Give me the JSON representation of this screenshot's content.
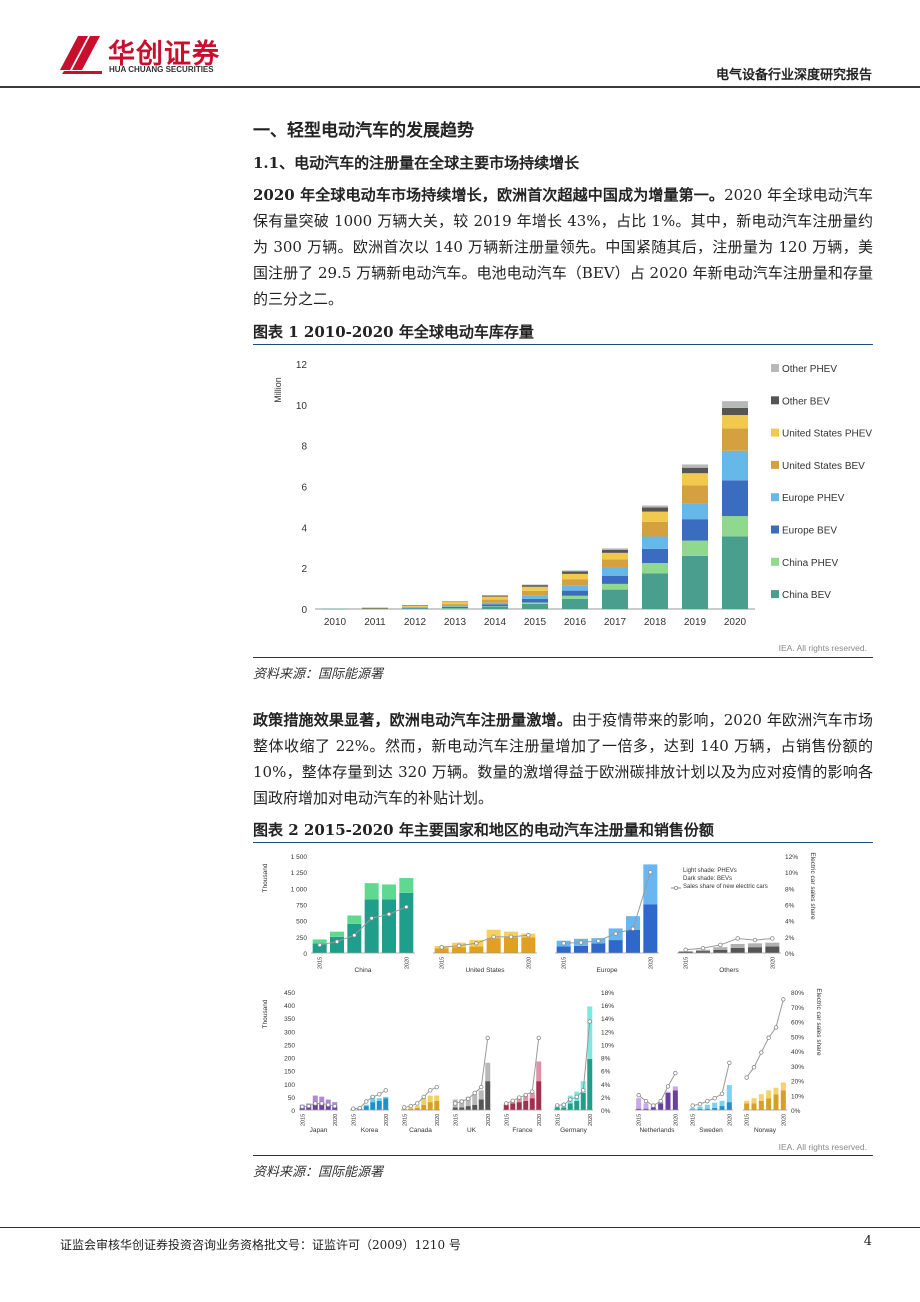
{
  "header": {
    "logo_cn": "华创证券",
    "logo_en": "HUA CHUANG SECURITIES",
    "report_title": "电气设备行业深度研究报告"
  },
  "section": {
    "h1": "一、轻型电动汽车的发展趋势",
    "h2": "1.1、电动汽车的注册量在全球主要市场持续增长"
  },
  "para1": {
    "bold": "2020 年全球电动车市场持续增长，欧洲首次超越中国成为增量第一。",
    "text": "2020 年全球电动汽车保有量突破 1000 万辆大关，较 2019 年增长 43%，占比 1%。其中，新电动汽车注册量约为 300 万辆。欧洲首次以 140 万辆新注册量领先。中国紧随其后，注册量为 120 万辆，美国注册了 29.5 万辆新电动汽车。电池电动汽车（BEV）占 2020 年新电动汽车注册量和存量的三分之二。"
  },
  "fig1": {
    "title": "图表 1 2010-2020 年全球电动车库存量",
    "source": "资料来源：国际能源署",
    "credit": "IEA. All rights reserved."
  },
  "para2": {
    "bold": "政策措施效果显著，欧洲电动汽车注册量激增。",
    "text": "由于疫情带来的影响，2020 年欧洲汽车市场整体收缩了 22%。然而，新电动汽车注册量增加了一倍多，达到 140 万辆，占销售份额的 10%，整体存量到达 320 万辆。数量的激增得益于欧洲碳排放计划以及为应对疫情的影响各国政府增加对电动汽车的补贴计划。"
  },
  "fig2": {
    "title": "图表 2 2015-2020 年主要国家和地区的电动汽车注册量和销售份额",
    "source": "资料来源：国际能源署",
    "credit": "IEA. All rights reserved."
  },
  "footer": {
    "license": "证监会审核华创证券投资咨询业务资格批文号：证监许可（2009）1210 号",
    "page": "4"
  },
  "chart_data": [
    {
      "type": "bar",
      "stacked": true,
      "ylabel": "Million",
      "ylim": [
        0,
        12
      ],
      "yticks": [
        "0",
        "2",
        "4",
        "6",
        "8",
        "10",
        "12"
      ],
      "categories": [
        "2010",
        "2011",
        "2012",
        "2013",
        "2014",
        "2015",
        "2016",
        "2017",
        "2018",
        "2019",
        "2020"
      ],
      "legend_position": "right",
      "series": [
        {
          "name": "China BEV",
          "color": "#4a9e8e",
          "values": [
            0.01,
            0.02,
            0.03,
            0.04,
            0.1,
            0.25,
            0.5,
            0.95,
            1.75,
            2.6,
            3.55
          ]
        },
        {
          "name": "China PHEV",
          "color": "#8fd98f",
          "values": [
            0,
            0,
            0,
            0.01,
            0.03,
            0.07,
            0.15,
            0.28,
            0.5,
            0.75,
            1.0
          ]
        },
        {
          "name": "Europe BEV",
          "color": "#3a6cc0",
          "values": [
            0,
            0.01,
            0.02,
            0.05,
            0.1,
            0.18,
            0.25,
            0.4,
            0.7,
            1.05,
            1.75
          ]
        },
        {
          "name": "Europe PHEV",
          "color": "#66b8e8",
          "values": [
            0,
            0,
            0.01,
            0.04,
            0.08,
            0.17,
            0.26,
            0.38,
            0.6,
            0.75,
            1.45
          ]
        },
        {
          "name": "United States BEV",
          "color": "#d4a040",
          "values": [
            0,
            0.01,
            0.05,
            0.1,
            0.15,
            0.22,
            0.3,
            0.42,
            0.72,
            0.9,
            1.1
          ]
        },
        {
          "name": "United States PHEV",
          "color": "#f2c94c",
          "values": [
            0,
            0.01,
            0.05,
            0.1,
            0.15,
            0.2,
            0.26,
            0.32,
            0.5,
            0.6,
            0.65
          ]
        },
        {
          "name": "Other BEV",
          "color": "#555555",
          "values": [
            0,
            0.01,
            0.02,
            0.03,
            0.05,
            0.08,
            0.12,
            0.15,
            0.2,
            0.27,
            0.35
          ]
        },
        {
          "name": "Other PHEV",
          "color": "#b8b8b8",
          "values": [
            0,
            0,
            0,
            0.01,
            0.02,
            0.03,
            0.05,
            0.07,
            0.1,
            0.16,
            0.33
          ]
        }
      ]
    },
    {
      "type": "bar",
      "stacked": true,
      "ylabel": "Thousand",
      "y2label": "Electric car sales share",
      "ylim": [
        0,
        1500
      ],
      "yticks": [
        "0",
        "250",
        "500",
        "750",
        "1 000",
        "1 250",
        "1 500"
      ],
      "y2ticks": [
        "0%",
        "2%",
        "4%",
        "6%",
        "8%",
        "10%",
        "12%"
      ],
      "legend": [
        "Light shade: PHEVs",
        "Dark shade: BEVs",
        "Sales share of new electric cars"
      ],
      "groups": [
        {
          "name": "China",
          "color_dark": "#1f9e8c",
          "color_light": "#5fd98f",
          "bev": [
            150,
            250,
            450,
            830,
            830,
            930
          ],
          "phev": [
            60,
            80,
            130,
            250,
            230,
            230
          ],
          "share": [
            1.0,
            1.4,
            2.2,
            4.3,
            4.8,
            5.7
          ]
        },
        {
          "name": "United States",
          "color_dark": "#e0a020",
          "color_light": "#f5d060",
          "bev": [
            70,
            90,
            100,
            230,
            240,
            240
          ],
          "phev": [
            40,
            70,
            100,
            130,
            90,
            60
          ],
          "share": [
            0.7,
            0.9,
            1.2,
            2.0,
            2.0,
            2.2
          ]
        },
        {
          "name": "Europe",
          "color_dark": "#2e68c8",
          "color_light": "#6ab6f0",
          "bev": [
            100,
            110,
            150,
            200,
            360,
            750
          ],
          "phev": [
            90,
            110,
            80,
            180,
            210,
            620
          ],
          "share": [
            1.2,
            1.3,
            1.5,
            2.4,
            3.0,
            10.0
          ]
        },
        {
          "name": "Others",
          "color_dark": "#555555",
          "color_light": "#b0b0b0",
          "bev": [
            20,
            30,
            50,
            80,
            90,
            100
          ],
          "phev": [
            10,
            20,
            40,
            60,
            60,
            60
          ],
          "share": [
            0.4,
            0.6,
            1.0,
            1.8,
            1.6,
            1.8
          ]
        }
      ],
      "x_first": "2015",
      "x_last": "2020"
    },
    {
      "type": "bar",
      "stacked": true,
      "ylabel": "Thousand",
      "ylim": [
        0,
        450
      ],
      "yticks": [
        "0",
        "50",
        "100",
        "150",
        "200",
        "250",
        "300",
        "350",
        "400",
        "450"
      ],
      "y2ticks": [
        "0%",
        "2%",
        "4%",
        "6%",
        "8%",
        "10%",
        "12%",
        "14%",
        "16%",
        "18%"
      ],
      "groups": [
        {
          "name": "Japan",
          "color_dark": "#6a3fa0",
          "color_light": "#b08ad8",
          "bev": [
            10,
            15,
            25,
            26,
            20,
            15
          ],
          "phev": [
            10,
            10,
            30,
            25,
            20,
            15
          ],
          "share": [
            0.5,
            0.6,
            1.0,
            1.0,
            0.8,
            0.6
          ]
        },
        {
          "name": "Korea",
          "color_dark": "#1f90c8",
          "color_light": "#6ad0f0",
          "bev": [
            3,
            5,
            15,
            30,
            35,
            45
          ],
          "phev": [
            1,
            2,
            5,
            25,
            10,
            5
          ],
          "share": [
            0.2,
            0.3,
            1.3,
            2.0,
            2.4,
            3.0
          ]
        },
        {
          "name": "Canada",
          "color_dark": "#d8a020",
          "color_light": "#f2d060",
          "bev": [
            3,
            5,
            8,
            20,
            30,
            35
          ],
          "phev": [
            3,
            4,
            8,
            25,
            25,
            20
          ],
          "share": [
            0.4,
            0.6,
            1.0,
            2.0,
            3.0,
            3.5
          ]
        },
        {
          "name": "UK",
          "color_dark": "#555555",
          "color_light": "#b8b8b8",
          "bev": [
            10,
            10,
            15,
            20,
            40,
            110
          ],
          "phev": [
            30,
            30,
            35,
            40,
            35,
            70
          ],
          "share": [
            1.0,
            1.3,
            1.7,
            2.6,
            3.5,
            11.0
          ]
        },
        {
          "name": "France",
          "color_dark": "#a03050",
          "color_light": "#e090a8",
          "bev": [
            20,
            25,
            30,
            35,
            45,
            110
          ],
          "phev": [
            5,
            10,
            15,
            20,
            20,
            75
          ],
          "share": [
            1.0,
            1.4,
            1.9,
            2.3,
            2.8,
            11.0
          ]
        },
        {
          "name": "Germany",
          "color_dark": "#1f9e8c",
          "color_light": "#7de8e0",
          "bev": [
            10,
            10,
            25,
            35,
            65,
            195
          ],
          "phev": [
            10,
            15,
            30,
            35,
            45,
            200
          ],
          "share": [
            0.7,
            0.8,
            1.6,
            2.0,
            3.0,
            13.5
          ]
        }
      ],
      "x_first": "2015",
      "x_last": "2020"
    },
    {
      "type": "bar",
      "stacked": true,
      "y2label": "Electric car sales share",
      "y2ticks": [
        "0%",
        "10%",
        "20%",
        "30%",
        "40%",
        "50%",
        "60%",
        "70%",
        "80%"
      ],
      "groups": [
        {
          "name": "Netherlands",
          "color_dark": "#6a3fa0",
          "color_light": "#c8a8e8",
          "bev": [
            5,
            5,
            10,
            25,
            65,
            75
          ],
          "phev": [
            40,
            20,
            10,
            5,
            5,
            15
          ],
          "share": [
            10,
            6,
            3,
            6,
            16,
            25
          ]
        },
        {
          "name": "Sweden",
          "color_dark": "#1f90c8",
          "color_light": "#7ad4f0",
          "bev": [
            3,
            5,
            5,
            8,
            15,
            30
          ],
          "phev": [
            5,
            8,
            15,
            20,
            20,
            65
          ],
          "share": [
            3,
            4,
            6,
            8,
            11,
            32
          ]
        },
        {
          "name": "Norway",
          "color_dark": "#d8a020",
          "color_light": "#f5d070",
          "bev": [
            25,
            25,
            35,
            45,
            60,
            75
          ],
          "phev": [
            10,
            20,
            25,
            30,
            25,
            30
          ],
          "share": [
            22,
            29,
            39,
            49,
            56,
            75
          ]
        }
      ],
      "x_first": "2015",
      "x_last": "2020"
    }
  ]
}
